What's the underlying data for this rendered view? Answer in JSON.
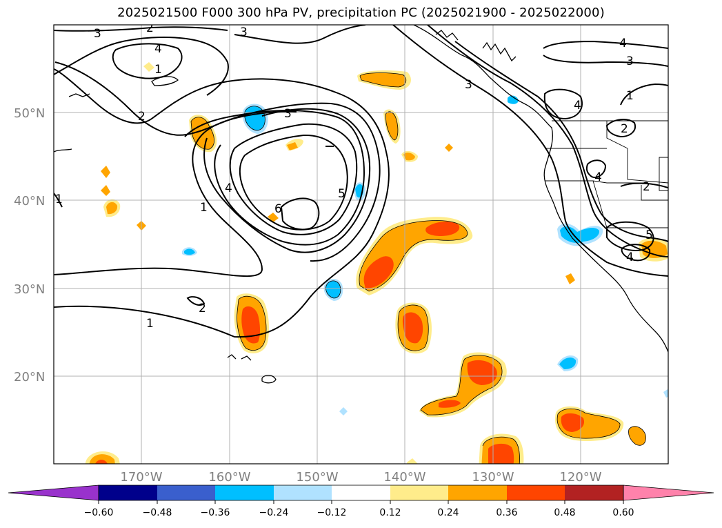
{
  "title": "2025021500 F000 300 hPa PV, precipitation PC (2025021900 - 2025022000)",
  "map": {
    "lat_labels": [
      "50°N",
      "40°N",
      "30°N",
      "20°N"
    ],
    "lon_labels": [
      "170°W",
      "160°W",
      "150°W",
      "140°W",
      "130°W",
      "120°W"
    ],
    "contour_labels": [
      "3",
      "2",
      "4",
      "3",
      "1",
      "2",
      "3",
      "4",
      "1",
      "5",
      "6",
      "1",
      "1",
      "2",
      "4",
      "3",
      "1",
      "4",
      "2",
      "3",
      "4",
      "5",
      "2",
      "4"
    ]
  },
  "colorbar": {
    "tick_labels": [
      "−0.60",
      "−0.48",
      "−0.36",
      "−0.24",
      "−0.12",
      "0.12",
      "0.24",
      "0.36",
      "0.48",
      "0.60"
    ],
    "colors": [
      "#9932cc",
      "#00008b",
      "#3a5fcd",
      "#00bfff",
      "#b0e2ff",
      "#ffffff",
      "#ffec8b",
      "#ffa500",
      "#ff4500",
      "#b22222",
      "#ff82ab"
    ]
  },
  "colors": {
    "neg_light": "#b0e2ff",
    "neg_mid": "#00bfff",
    "pos_light": "#ffec8b",
    "pos_mid": "#ffa500",
    "pos_high": "#ff4500",
    "grid": "#b0b0b0"
  }
}
